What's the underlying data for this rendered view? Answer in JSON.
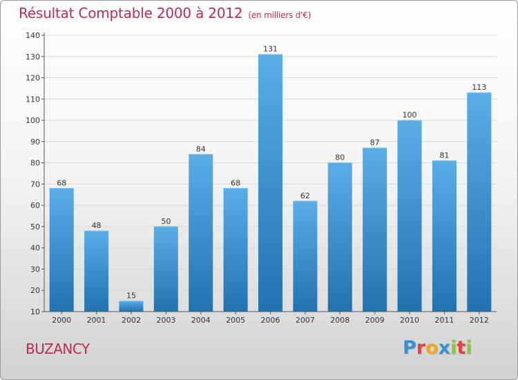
{
  "chart_data": {
    "type": "bar",
    "title": "Résultat Comptable 2000 à 2012",
    "subtitle": "(en milliers d'€)",
    "categories": [
      "2000",
      "2001",
      "2002",
      "2003",
      "2004",
      "2005",
      "2006",
      "2007",
      "2008",
      "2009",
      "2010",
      "2011",
      "2012"
    ],
    "values": [
      68,
      48,
      15,
      50,
      84,
      68,
      131,
      62,
      80,
      87,
      100,
      81,
      113
    ],
    "yticks": [
      10,
      20,
      30,
      40,
      50,
      60,
      70,
      80,
      90,
      100,
      110,
      120,
      130,
      140
    ],
    "ylim": [
      10,
      140
    ],
    "grid": true,
    "xlabel": "",
    "ylabel": ""
  },
  "footer": {
    "town": "BUZANCY",
    "logo_letters": [
      "P",
      "r",
      "o",
      "x",
      "i",
      "t",
      "i"
    ],
    "logo_colors": [
      "#3a8fd6",
      "#e8413b",
      "#f2a71b",
      "#3a8fd6",
      "#8cc63f",
      "#e8413b",
      "#8cc63f"
    ]
  },
  "colors": {
    "title": "#c0294f",
    "bar_top": "#5aaee8",
    "bar_bottom": "#2272b0",
    "grid": "#d8d8d8"
  }
}
